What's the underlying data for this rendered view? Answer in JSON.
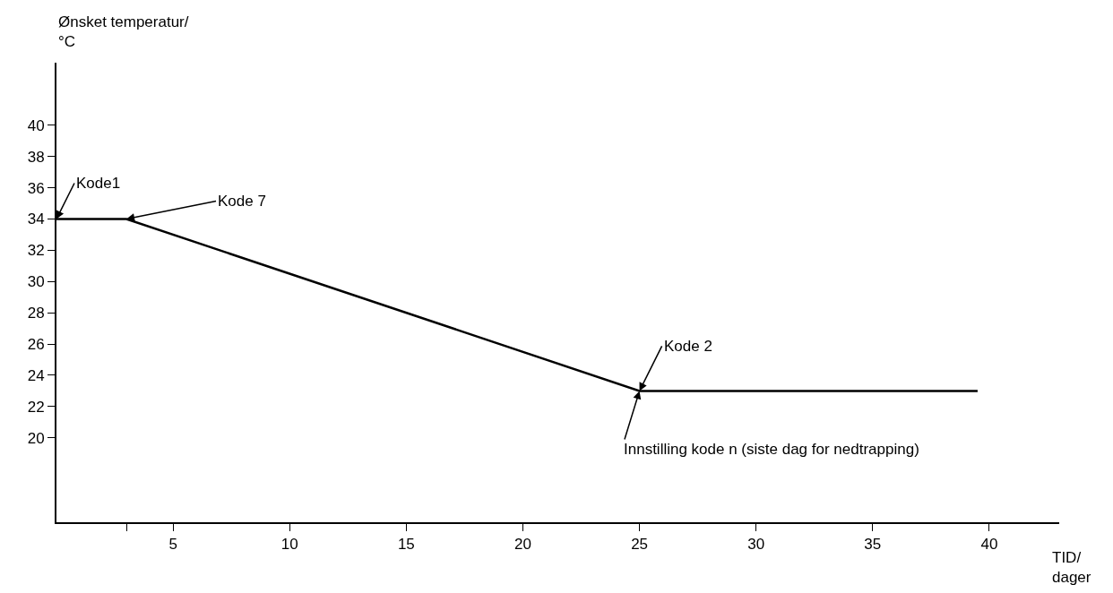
{
  "chart_data": {
    "type": "line",
    "xlabel": "TID/\ndager",
    "ylabel": "Ønsket temperatur/\n°C",
    "x": [
      0,
      3,
      25,
      39.5
    ],
    "values": [
      34,
      34,
      23,
      23
    ],
    "color": "#000000",
    "marker": "none",
    "line_style": "solid",
    "grid": false,
    "xlim": [
      0,
      43
    ],
    "ylim": [
      14.6,
      44
    ],
    "xticks": [
      {
        "value": 3,
        "label": null
      },
      5,
      10,
      15,
      20,
      25,
      30,
      35,
      40
    ],
    "yticks": [
      20,
      22,
      24,
      26,
      28,
      30,
      32,
      34,
      36,
      38,
      40
    ],
    "annotations": [
      {
        "text": "Kode1",
        "x": 0,
        "y": 34
      },
      {
        "text": "Kode 7",
        "x": 3,
        "y": 34
      },
      {
        "text": "Kode 2",
        "x": 25,
        "y": 23
      },
      {
        "text": "Innstilling kode n (siste dag for nedtrapping)",
        "x": 25,
        "y": 23
      }
    ]
  }
}
